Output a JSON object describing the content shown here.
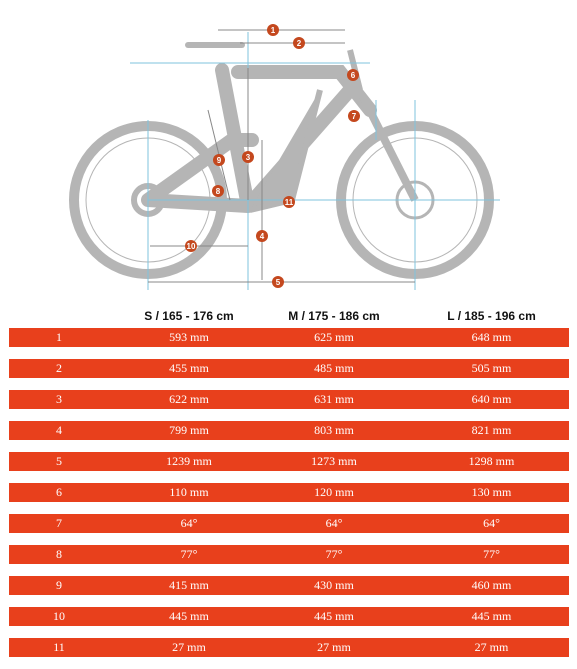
{
  "diagram": {
    "markers": [
      "1",
      "2",
      "3",
      "4",
      "5",
      "6",
      "7",
      "8",
      "9",
      "10",
      "11"
    ]
  },
  "table": {
    "headers": [
      "S / 165 - 176 cm",
      "M / 175 - 186 cm",
      "L / 185 - 196 cm"
    ],
    "rows": [
      {
        "id": "1",
        "s": "593 mm",
        "m": "625 mm",
        "l": "648 mm"
      },
      {
        "id": "2",
        "s": "455 mm",
        "m": "485 mm",
        "l": "505 mm"
      },
      {
        "id": "3",
        "s": "622 mm",
        "m": "631 mm",
        "l": "640 mm"
      },
      {
        "id": "4",
        "s": "799 mm",
        "m": "803 mm",
        "l": "821 mm"
      },
      {
        "id": "5",
        "s": "1239 mm",
        "m": "1273 mm",
        "l": "1298 mm"
      },
      {
        "id": "6",
        "s": "110 mm",
        "m": "120 mm",
        "l": "130 mm"
      },
      {
        "id": "7",
        "s": "64°",
        "m": "64°",
        "l": "64°"
      },
      {
        "id": "8",
        "s": "77°",
        "m": "77°",
        "l": "77°"
      },
      {
        "id": "9",
        "s": "415 mm",
        "m": "430 mm",
        "l": "460 mm"
      },
      {
        "id": "10",
        "s": "445 mm",
        "m": "445 mm",
        "l": "445 mm"
      },
      {
        "id": "11",
        "s": "27 mm",
        "m": "27 mm",
        "l": "27 mm"
      }
    ]
  },
  "colors": {
    "row_bg": "#e8401c",
    "marker": "#c4481e",
    "bike": "#b5b5b5",
    "guide": "#7fc3dd"
  }
}
